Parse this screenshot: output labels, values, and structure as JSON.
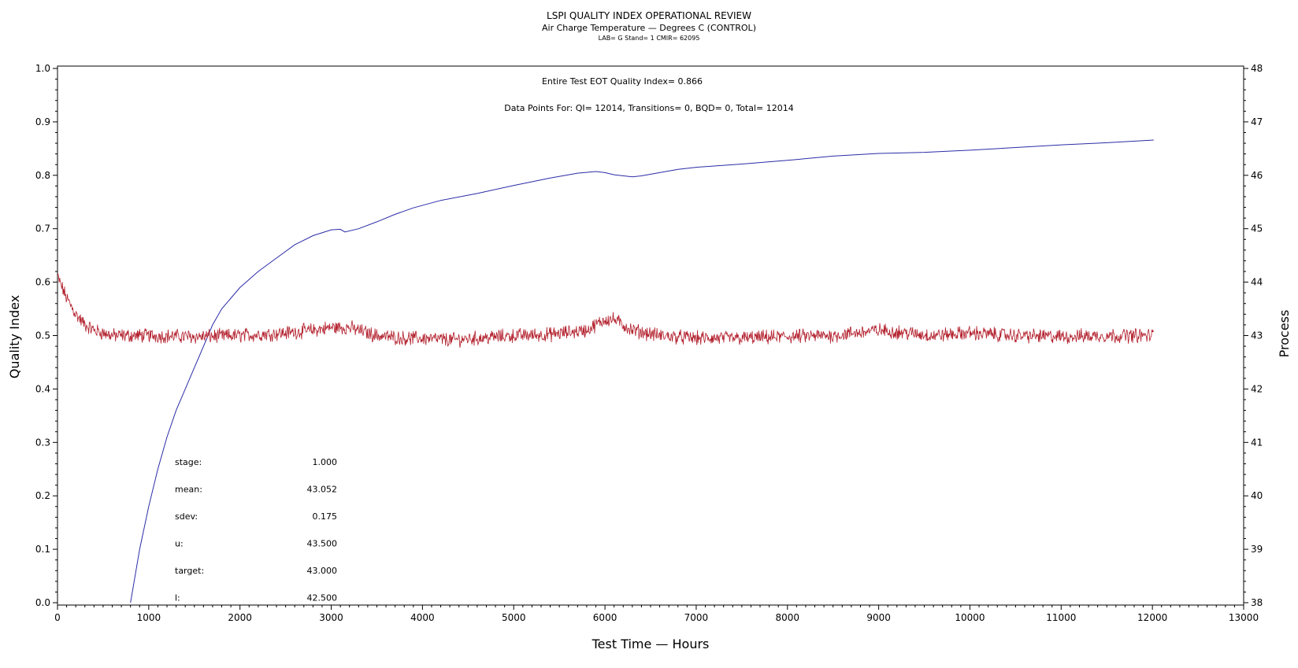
{
  "chart_data": {
    "type": "line",
    "title": "LSPI QUALITY INDEX OPERATIONAL REVIEW",
    "subtitle": "Air Charge Temperature — Degrees C (CONTROL)",
    "subtitle2": "LAB= G Stand= 1 CMIR= 62095",
    "xlabel": "Test Time — Hours",
    "ylabel_left": "Quality Index",
    "ylabel_right": "Process",
    "xlim": [
      0,
      13000
    ],
    "ylim_left": [
      0.0,
      1.0
    ],
    "ylim_right": [
      38,
      48
    ],
    "x_ticks": [
      "0",
      "1000",
      "2000",
      "3000",
      "4000",
      "5000",
      "6000",
      "7000",
      "8000",
      "9000",
      "10000",
      "11000",
      "12000",
      "13000"
    ],
    "y_left_ticks": [
      "0.0",
      "0.1",
      "0.2",
      "0.3",
      "0.4",
      "0.5",
      "0.6",
      "0.7",
      "0.8",
      "0.9",
      "1.0"
    ],
    "y_right_ticks": [
      "38",
      "39",
      "40",
      "41",
      "42",
      "43",
      "44",
      "45",
      "46",
      "47",
      "48"
    ],
    "grid": false,
    "annotations": {
      "eot": "Entire Test EOT Quality Index=   0.866",
      "points": "Data Points For: QI= 12014, Transitions=     0, BQD=     0, Total= 12014"
    },
    "stats": [
      {
        "label": "stage:",
        "value": "1.000"
      },
      {
        "label": "mean:",
        "value": "43.052"
      },
      {
        "label": "sdev:",
        "value": "0.175"
      },
      {
        "label": "u:",
        "value": "43.500"
      },
      {
        "label": "target:",
        "value": "43.000"
      },
      {
        "label": "l:",
        "value": "42.500"
      }
    ],
    "series": [
      {
        "name": "Quality Index",
        "axis": "left",
        "color": "#2b2ba8",
        "x": [
          800,
          900,
          1000,
          1100,
          1200,
          1300,
          1400,
          1500,
          1600,
          1700,
          1800,
          1900,
          2000,
          2200,
          2400,
          2600,
          2800,
          3000,
          3100,
          3150,
          3300,
          3500,
          3700,
          3900,
          4200,
          4600,
          5000,
          5400,
          5700,
          5900,
          6000,
          6100,
          6300,
          6400,
          6600,
          6800,
          7000,
          7500,
          8000,
          8500,
          9000,
          9500,
          10000,
          10500,
          11000,
          11500,
          12014
        ],
        "y": [
          0.0,
          0.1,
          0.18,
          0.25,
          0.31,
          0.36,
          0.4,
          0.44,
          0.48,
          0.52,
          0.55,
          0.57,
          0.59,
          0.62,
          0.645,
          0.67,
          0.687,
          0.698,
          0.699,
          0.694,
          0.7,
          0.713,
          0.727,
          0.739,
          0.753,
          0.766,
          0.781,
          0.795,
          0.804,
          0.807,
          0.805,
          0.801,
          0.797,
          0.799,
          0.805,
          0.811,
          0.815,
          0.821,
          0.828,
          0.836,
          0.841,
          0.843,
          0.847,
          0.852,
          0.857,
          0.861,
          0.866
        ]
      },
      {
        "name": "Process",
        "axis": "right",
        "color": "#b21e2b",
        "x": [
          0,
          100,
          200,
          300,
          400,
          600,
          800,
          1000,
          1500,
          2000,
          2500,
          2800,
          3000,
          3200,
          3500,
          3800,
          4000,
          4300,
          4600,
          5000,
          5400,
          5800,
          6000,
          6100,
          6300,
          6600,
          7000,
          7500,
          8000,
          8500,
          9000,
          9300,
          9600,
          10000,
          10500,
          11000,
          11500,
          12014
        ],
        "y": [
          44.1,
          43.7,
          43.4,
          43.2,
          43.1,
          43.0,
          43.0,
          43.0,
          42.98,
          43.0,
          43.05,
          43.1,
          43.15,
          43.15,
          43.0,
          42.95,
          42.95,
          42.92,
          42.95,
          43.0,
          43.02,
          43.1,
          43.3,
          43.3,
          43.1,
          43.0,
          42.95,
          42.95,
          42.98,
          43.0,
          43.1,
          43.05,
          43.0,
          43.05,
          43.0,
          42.98,
          43.0,
          43.0
        ]
      }
    ]
  }
}
